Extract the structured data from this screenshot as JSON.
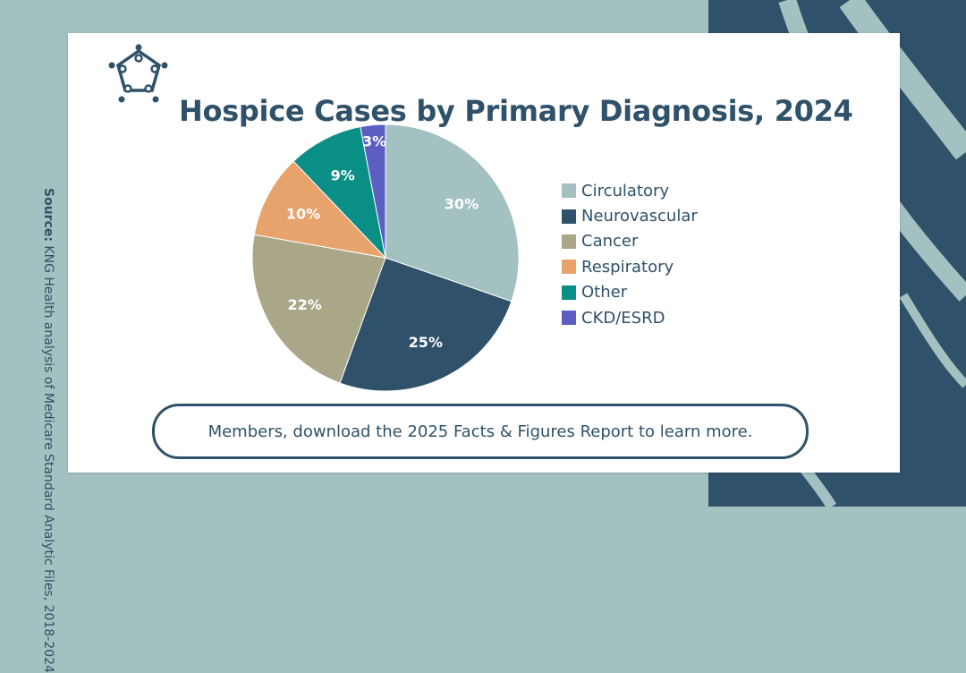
{
  "title": "Hospice Cases by Primary Diagnosis, 2024",
  "logo": {
    "icon": "network-pentagon-icon"
  },
  "cta": {
    "label": "Members, download the 2025 Facts & Figures Report to learn more."
  },
  "source": {
    "label": "Source:",
    "text": "KNG Health analysis of Medicare Standard Analytic Files, 2018-2024"
  },
  "colors": {
    "background": "#a3c1c0",
    "dark": "#2f5169",
    "card": "#ffffff"
  },
  "chart_data": {
    "type": "pie",
    "title": "Hospice Cases by Primary Diagnosis, 2024",
    "legend_position": "right",
    "slices": [
      {
        "label": "Circulatory",
        "value": 30,
        "display": "30%",
        "color": "#a3c1c0"
      },
      {
        "label": "Neurovascular",
        "value": 25,
        "display": "25%",
        "color": "#2f5169"
      },
      {
        "label": "Cancer",
        "value": 22,
        "display": "22%",
        "color": "#a9a788"
      },
      {
        "label": "Respiratory",
        "value": 10,
        "display": "10%",
        "color": "#e8a36c"
      },
      {
        "label": "Other",
        "value": 9,
        "display": "9%",
        "color": "#0a8f87"
      },
      {
        "label": "CKD/ESRD",
        "value": 3,
        "display": "3%",
        "color": "#5d5ec2"
      }
    ]
  }
}
